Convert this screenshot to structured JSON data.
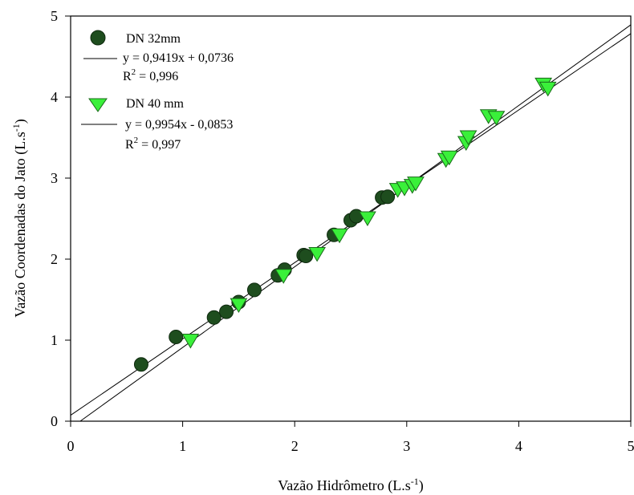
{
  "chart_data": {
    "type": "scatter",
    "xlabel": "Vazão Hidrômetro (L.s",
    "xlabel_sup": "-1",
    "xlabel_suffix": ")",
    "ylabel": "Vazão Coordenadas do Jato (L.s",
    "ylabel_sup": "-1",
    "ylabel_suffix": ")",
    "xlim": [
      0,
      5
    ],
    "ylim": [
      0,
      5
    ],
    "xticks": [
      "0",
      "1",
      "2",
      "3",
      "4",
      "5"
    ],
    "yticks": [
      "0",
      "1",
      "2",
      "3",
      "4",
      "5"
    ],
    "legend_position": "top-left",
    "series": [
      {
        "name": "DN 32mm",
        "marker": "circle",
        "color": "#1e4d1e",
        "x": [
          0.63,
          0.94,
          1.28,
          1.39,
          1.5,
          1.64,
          1.85,
          1.91,
          2.08,
          2.1,
          2.35,
          2.5,
          2.55,
          2.78,
          2.83
        ],
        "y": [
          0.7,
          1.04,
          1.28,
          1.35,
          1.47,
          1.62,
          1.8,
          1.87,
          2.05,
          2.04,
          2.3,
          2.48,
          2.53,
          2.76,
          2.77
        ],
        "fit": {
          "slope": 0.9419,
          "intercept": 0.0736,
          "equation": "y = 0,9419x + 0,0736",
          "r2_label": "R",
          "r2_sup": "2",
          "r2_value": " = 0,996"
        }
      },
      {
        "name": "DN 40 mm",
        "marker": "triangle-down",
        "color": "#3af03a",
        "x": [
          1.07,
          1.5,
          1.9,
          2.2,
          2.4,
          2.65,
          2.92,
          2.98,
          3.05,
          3.08,
          3.35,
          3.38,
          3.53,
          3.55,
          3.73,
          3.8,
          4.22,
          4.26
        ],
        "y": [
          0.99,
          1.43,
          1.79,
          2.06,
          2.29,
          2.5,
          2.85,
          2.87,
          2.9,
          2.93,
          3.22,
          3.25,
          3.43,
          3.5,
          3.76,
          3.74,
          4.15,
          4.1
        ],
        "fit": {
          "slope": 0.9954,
          "intercept": -0.0853,
          "equation": "y = 0,9954x - 0,0853",
          "r2_label": "R",
          "r2_sup": "2",
          "r2_value": " = 0,997"
        }
      }
    ]
  }
}
